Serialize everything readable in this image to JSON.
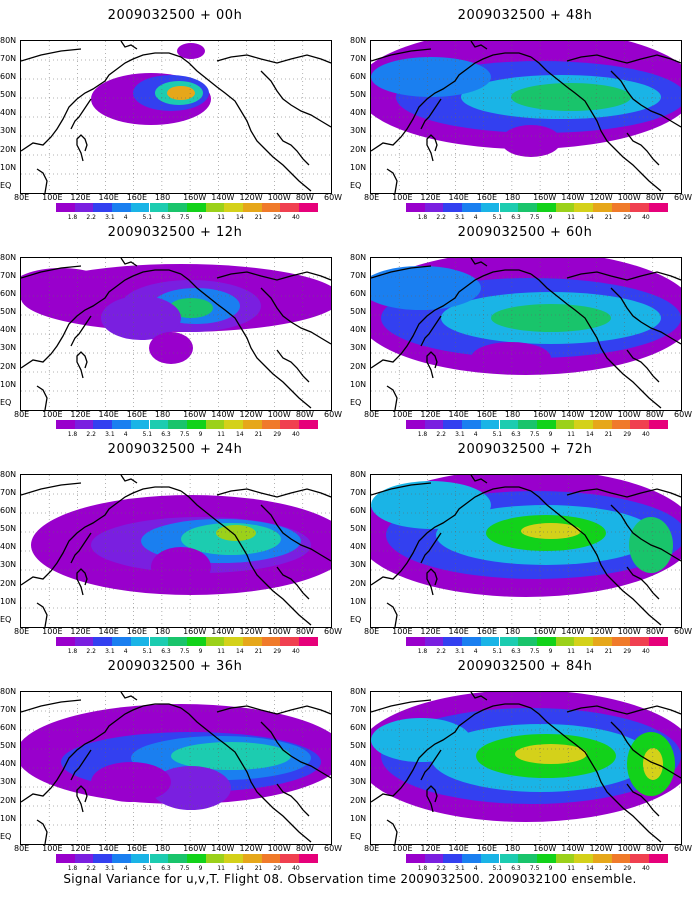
{
  "panels": [
    {
      "title": "2009032500 + 00h",
      "lead_hours": 0
    },
    {
      "title": "2009032500 + 48h",
      "lead_hours": 48
    },
    {
      "title": "2009032500 + 12h",
      "lead_hours": 12
    },
    {
      "title": "2009032500 + 60h",
      "lead_hours": 60
    },
    {
      "title": "2009032500 + 24h",
      "lead_hours": 24
    },
    {
      "title": "2009032500 + 72h",
      "lead_hours": 72
    },
    {
      "title": "2009032500 + 36h",
      "lead_hours": 36
    },
    {
      "title": "2009032500 + 84h",
      "lead_hours": 84
    }
  ],
  "lat_labels": [
    "80N",
    "70N",
    "60N",
    "50N",
    "40N",
    "30N",
    "20N",
    "10N",
    "EQ"
  ],
  "lon_labels": [
    "80E",
    "100E",
    "120E",
    "140E",
    "160E",
    "180",
    "160W",
    "140W",
    "120W",
    "100W",
    "80W",
    "60W"
  ],
  "colorbar": {
    "labels": [
      "1.8",
      "2.2",
      "3.1",
      "4",
      "5.1",
      "6.3",
      "7.5",
      "9",
      "11",
      "14",
      "21",
      "29",
      "40"
    ],
    "colors": [
      "#9900cc",
      "#7a1fe0",
      "#3340f0",
      "#1a7ff0",
      "#1ab4e6",
      "#1cccb0",
      "#19c46b",
      "#12d21a",
      "#9bd11a",
      "#d4d11a",
      "#e6a71a",
      "#f07a2a",
      "#f04050",
      "#e6007a"
    ]
  },
  "footer": "Signal Variance for u,v,T. Flight 08. Observation time 2009032500. 2009032100 ensemble."
}
